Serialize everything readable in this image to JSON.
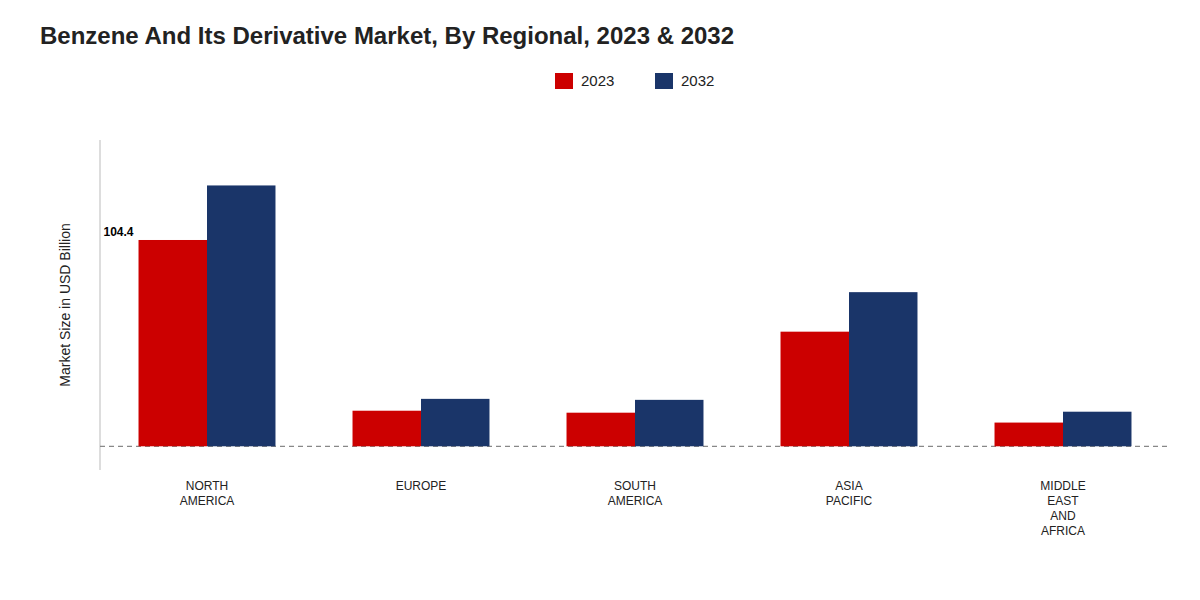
{
  "chart_data": {
    "type": "bar",
    "title": "Benzene And Its Derivative Market, By Regional, 2023 & 2032",
    "y_label": "Market Size in USD Billion",
    "categories": [
      "NORTH\nAMERICA",
      "EUROPE",
      "SOUTH\nAMERICA",
      "ASIA\nPACIFIC",
      "MIDDLE\nEAST\nAND\nAFRICA"
    ],
    "series": [
      {
        "name": "2023",
        "color": "#cc0000",
        "values": [
          104.4,
          18.0,
          17.0,
          58.0,
          12.0
        ]
      },
      {
        "name": "2032",
        "color": "#1a3569",
        "values": [
          132.0,
          24.0,
          23.5,
          78.0,
          17.5
        ]
      }
    ],
    "annotations": [
      {
        "text": "104.4",
        "x": "NORTH\nAMERICA",
        "y": 104.4,
        "series": "2023"
      }
    ],
    "ylim": [
      -12,
      155
    ],
    "yticks": [
      0
    ],
    "tick_labels": "x",
    "grid": false,
    "legend": "top"
  }
}
